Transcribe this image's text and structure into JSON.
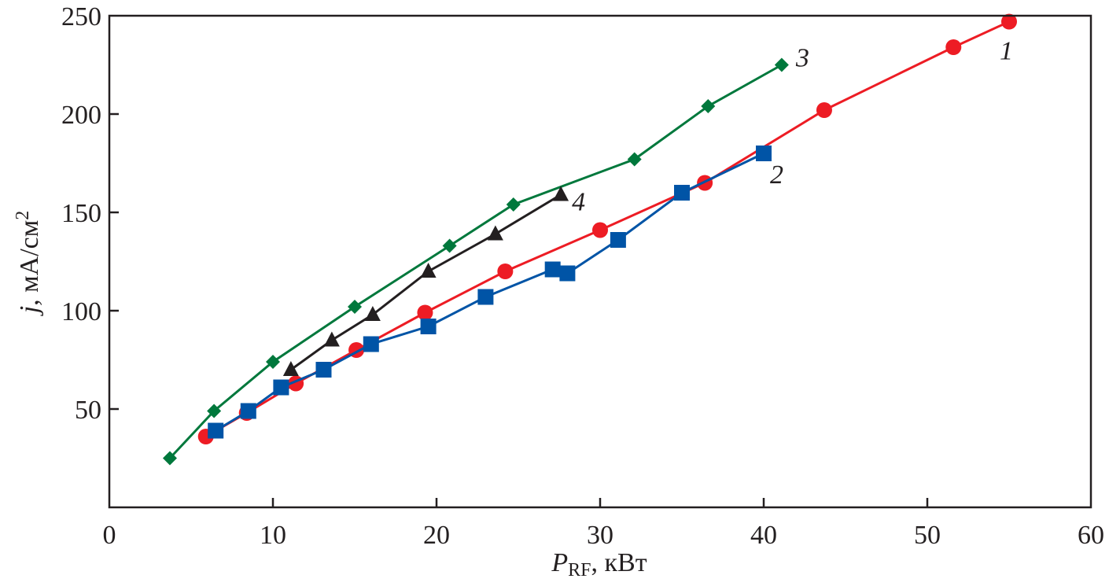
{
  "chart_data": {
    "type": "line",
    "title": "",
    "xlabel": {
      "main": "P",
      "sub": "RF",
      "unit": ", кВт"
    },
    "ylabel": {
      "main": "j",
      "unit": ", мА/см",
      "sup": "2"
    },
    "xlim": [
      0,
      60
    ],
    "ylim": [
      0,
      250
    ],
    "xticks": [
      0,
      10,
      20,
      30,
      40,
      50,
      60
    ],
    "yticks": [
      50,
      100,
      150,
      200,
      250
    ],
    "grid": false,
    "series": [
      {
        "name": "1",
        "color": "#ed1c24",
        "marker": "circle",
        "x": [
          5.9,
          8.4,
          11.4,
          15.1,
          19.3,
          24.2,
          30.0,
          36.4,
          43.7,
          51.6,
          55.0
        ],
        "y": [
          36,
          48,
          63,
          80,
          99,
          120,
          141,
          165,
          202,
          234,
          247
        ]
      },
      {
        "name": "2",
        "color": "#0054a6",
        "marker": "square",
        "x": [
          6.5,
          8.5,
          10.5,
          13.1,
          16.0,
          19.5,
          23.0,
          27.1,
          28.0,
          31.1,
          35.0,
          40.0
        ],
        "y": [
          39,
          49,
          61,
          70,
          83,
          92,
          107,
          121,
          119,
          136,
          160,
          180
        ]
      },
      {
        "name": "3",
        "color": "#00783c",
        "marker": "diamond",
        "x": [
          3.7,
          6.4,
          10.0,
          15.0,
          20.8,
          24.7,
          32.1,
          36.6,
          41.1
        ],
        "y": [
          25,
          49,
          74,
          102,
          133,
          154,
          177,
          204,
          225
        ]
      },
      {
        "name": "4",
        "color": "#231f20",
        "marker": "triangle",
        "x": [
          11.1,
          13.6,
          16.1,
          19.5,
          23.6,
          27.6
        ],
        "y": [
          70,
          85,
          98,
          120,
          139,
          159
        ]
      }
    ]
  }
}
